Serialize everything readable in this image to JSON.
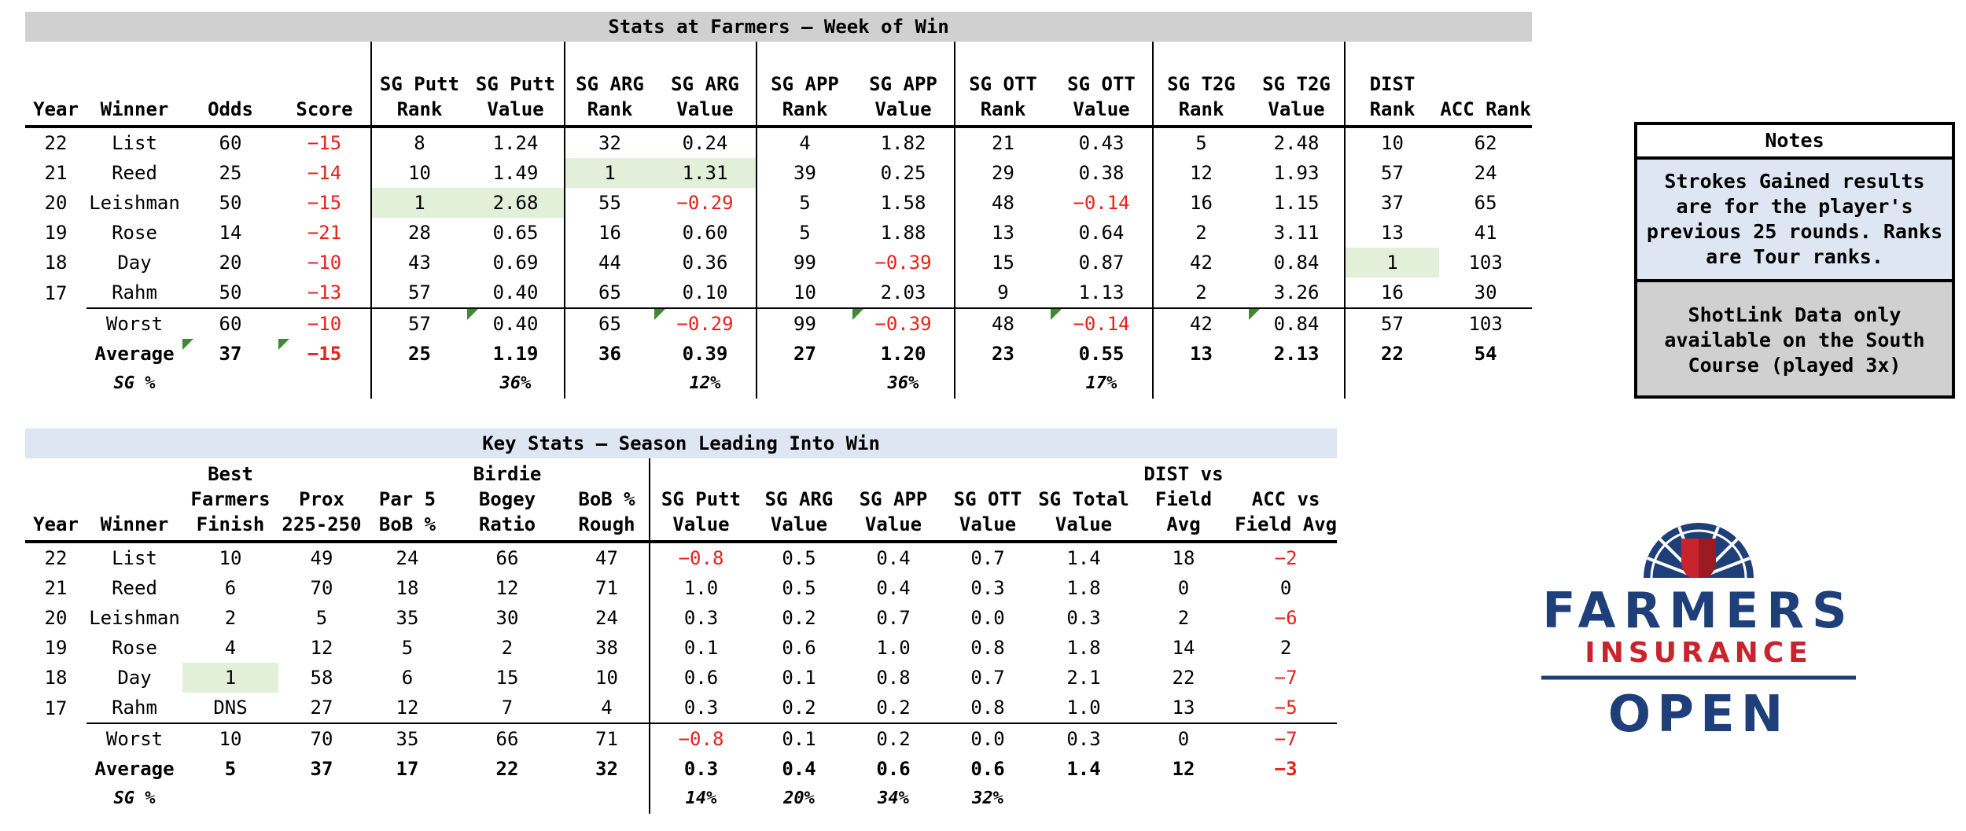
{
  "t1": {
    "title": "Stats at Farmers – Week of Win",
    "headers": [
      "Year",
      "Winner",
      "Odds",
      "Score",
      "SG Putt Rank",
      "SG Putt Value",
      "SG ARG Rank",
      "SG ARG Value",
      "SG APP Rank",
      "SG APP Value",
      "SG OTT Rank",
      "SG OTT Value",
      "SG T2G Rank",
      "SG T2G Value",
      "DIST Rank",
      "ACC Rank"
    ],
    "rows": [
      [
        "22",
        "List",
        "60",
        "−15",
        "8",
        "1.24",
        "32",
        "0.24",
        "4",
        "1.82",
        "21",
        "0.43",
        "5",
        "2.48",
        "10",
        "62"
      ],
      [
        "21",
        "Reed",
        "25",
        "−14",
        "10",
        "1.49",
        "1",
        "1.31",
        "39",
        "0.25",
        "29",
        "0.38",
        "12",
        "1.93",
        "57",
        "24"
      ],
      [
        "20",
        "Leishman",
        "50",
        "−15",
        "1",
        "2.68",
        "55",
        "−0.29",
        "5",
        "1.58",
        "48",
        "−0.14",
        "16",
        "1.15",
        "37",
        "65"
      ],
      [
        "19",
        "Rose",
        "14",
        "−21",
        "28",
        "0.65",
        "16",
        "0.60",
        "5",
        "1.88",
        "13",
        "0.64",
        "2",
        "3.11",
        "13",
        "41"
      ],
      [
        "18",
        "Day",
        "20",
        "−10",
        "43",
        "0.69",
        "44",
        "0.36",
        "99",
        "−0.39",
        "15",
        "0.87",
        "42",
        "0.84",
        "1",
        "103"
      ],
      [
        "17",
        "Rahm",
        "50",
        "−13",
        "57",
        "0.40",
        "65",
        "0.10",
        "10",
        "2.03",
        "9",
        "1.13",
        "2",
        "3.26",
        "16",
        "30"
      ]
    ],
    "worst": [
      "",
      "Worst",
      "60",
      "−10",
      "57",
      "0.40",
      "65",
      "−0.29",
      "99",
      "−0.39",
      "48",
      "−0.14",
      "42",
      "0.84",
      "57",
      "103"
    ],
    "average": [
      "",
      "Average",
      "37",
      "−15",
      "25",
      "1.19",
      "36",
      "0.39",
      "27",
      "1.20",
      "23",
      "0.55",
      "13",
      "2.13",
      "22",
      "54"
    ],
    "sg": [
      "",
      "SG %",
      "",
      "",
      "",
      "36%",
      "",
      "12%",
      "",
      "36%",
      "",
      "17%",
      "",
      "",
      "",
      ""
    ]
  },
  "t2": {
    "title": "Key Stats – Season Leading Into Win",
    "headers": [
      "Year",
      "Winner",
      "Best Farmers Finish",
      "Prox 225-250",
      "Par 5 BoB %",
      "Birdie Bogey Ratio",
      "BoB % Rough",
      "SG Putt Value",
      "SG ARG Value",
      "SG APP Value",
      "SG OTT Value",
      "SG Total Value",
      "DIST vs Field Avg",
      "ACC vs Field Avg"
    ],
    "rows": [
      [
        "22",
        "List",
        "10",
        "49",
        "24",
        "66",
        "47",
        "−0.8",
        "0.5",
        "0.4",
        "0.7",
        "1.4",
        "18",
        "−2"
      ],
      [
        "21",
        "Reed",
        "6",
        "70",
        "18",
        "12",
        "71",
        "1.0",
        "0.5",
        "0.4",
        "0.3",
        "1.8",
        "0",
        "0"
      ],
      [
        "20",
        "Leishman",
        "2",
        "5",
        "35",
        "30",
        "24",
        "0.3",
        "0.2",
        "0.7",
        "0.0",
        "0.3",
        "2",
        "−6"
      ],
      [
        "19",
        "Rose",
        "4",
        "12",
        "5",
        "2",
        "38",
        "0.1",
        "0.6",
        "1.0",
        "0.8",
        "1.8",
        "14",
        "2"
      ],
      [
        "18",
        "Day",
        "1",
        "58",
        "6",
        "15",
        "10",
        "0.6",
        "0.1",
        "0.8",
        "0.7",
        "2.1",
        "22",
        "−7"
      ],
      [
        "17",
        "Rahm",
        "DNS",
        "27",
        "12",
        "7",
        "4",
        "0.3",
        "0.2",
        "0.2",
        "0.8",
        "1.0",
        "13",
        "−5"
      ]
    ],
    "worst": [
      "",
      "Worst",
      "10",
      "70",
      "35",
      "66",
      "71",
      "−0.8",
      "0.1",
      "0.2",
      "0.0",
      "0.3",
      "0",
      "−7"
    ],
    "average": [
      "",
      "Average",
      "5",
      "37",
      "17",
      "22",
      "32",
      "0.3",
      "0.4",
      "0.6",
      "0.6",
      "1.4",
      "12",
      "−3"
    ],
    "sg": [
      "",
      "SG %",
      "",
      "",
      "",
      "",
      "",
      "14%",
      "20%",
      "34%",
      "32%",
      "",
      "",
      ""
    ]
  },
  "notes": {
    "title": "Notes",
    "text1": "Strokes Gained results are for the player's previous 25 rounds. Ranks are Tour ranks.",
    "text2": "ShotLink Data only available on the South Course (played 3x)"
  },
  "logo": {
    "line1": "FARMERS",
    "line2": "INSURANCE",
    "line3": "OPEN",
    "navy": "#1f3f7a",
    "red": "#c8242e"
  },
  "colors": {
    "negative": "#e8211b",
    "highlight_green": "#e2efd9",
    "t1_title_bg": "#d0d0d0",
    "t2_title_bg": "#dde6f2"
  }
}
